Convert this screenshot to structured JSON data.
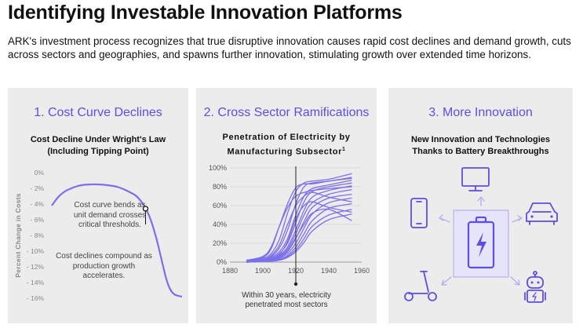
{
  "page": {
    "title": "Identifying Investable Innovation Platforms",
    "intro": "ARK's investment process recognizes that true disruptive innovation causes rapid cost declines and demand growth, cuts across sectors and geographies, and spawns further innovation, stimulating growth over extended time horizons."
  },
  "panels": [
    {
      "title": "1. Cost Curve Declines",
      "subtitle_line1": "Cost Decline Under Wright's Law",
      "subtitle_line2": "(Including Tipping Point)",
      "annotation1_line1": "Cost curve bends as",
      "annotation1_line2": "unit demand crosses",
      "annotation1_line3": "critical thresholds.",
      "annotation2_line1": "Cost declines compound as",
      "annotation2_line2": "production growth",
      "annotation2_line3": "accelerates."
    },
    {
      "title": "2. Cross Sector Ramifications",
      "subtitle_line1": "Penetration of Electricity by",
      "subtitle_line2": "Manufacturing Subsector",
      "subtitle_sup": "1",
      "annotation_line1": "Within 30 years, electricity",
      "annotation_line2": "penetrated most sectors"
    },
    {
      "title": "3. More Innovation",
      "subtitle_line1": "New Innovation and Technologies",
      "subtitle_line2": "Thanks to Battery Breakthroughs",
      "icons": [
        "monitor-icon",
        "smartphone-icon",
        "car-icon",
        "battery-icon",
        "scooter-icon",
        "robot-icon"
      ]
    }
  ],
  "chart_data": [
    {
      "type": "line",
      "title": "Cost Decline Under Wright's Law (Including Tipping Point)",
      "ylabel": "Percent Change in Costs",
      "xlabel": "",
      "ylim": [
        -16,
        0
      ],
      "yticks": [
        "0%",
        "- 2%",
        "- 4%",
        "- 6%",
        "- 8%",
        "- 10%",
        "- 12%",
        "- 14%",
        "- 16%"
      ],
      "grid": false,
      "series": [
        {
          "x": [
            0,
            5,
            10,
            15,
            20,
            25,
            30,
            35,
            40,
            45,
            50,
            55,
            60,
            65,
            70,
            75,
            80,
            85,
            88,
            91,
            94,
            97,
            100
          ],
          "values": [
            -4.2,
            -3.1,
            -2.4,
            -2.0,
            -1.7,
            -1.55,
            -1.5,
            -1.5,
            -1.55,
            -1.65,
            -1.8,
            -2.1,
            -2.5,
            -3.0,
            -4.0,
            -5.6,
            -8.2,
            -11.6,
            -13.6,
            -14.9,
            -15.5,
            -15.7,
            -15.8
          ]
        }
      ],
      "annotations": [
        "Cost curve bends as unit demand crosses critical thresholds.",
        "Cost declines compound as production growth accelerates."
      ]
    },
    {
      "type": "line",
      "title": "Penetration of Electricity by Manufacturing Subsector",
      "xlabel": "",
      "ylabel": "",
      "xlim": [
        1880,
        1960
      ],
      "xticks": [
        "1880",
        "1900",
        "1920",
        "1940",
        "1960"
      ],
      "ylim": [
        0,
        100
      ],
      "yticks": [
        "0%",
        "20%",
        "40%",
        "60%",
        "80%",
        "100%"
      ],
      "grid": true,
      "marker_year": 1920,
      "color": "#7b6fec",
      "series": [
        {
          "x": [
            1890,
            1900,
            1905,
            1910,
            1915,
            1920,
            1925,
            1930,
            1940,
            1954
          ],
          "values": [
            2,
            5,
            14,
            38,
            62,
            79,
            83,
            83,
            86,
            89
          ]
        },
        {
          "x": [
            1890,
            1900,
            1905,
            1910,
            1915,
            1920,
            1925,
            1930,
            1940,
            1954
          ],
          "values": [
            2,
            4,
            9,
            24,
            52,
            75,
            84,
            86,
            88,
            94
          ]
        },
        {
          "x": [
            1890,
            1900,
            1905,
            1910,
            1915,
            1920,
            1925,
            1930,
            1940,
            1954
          ],
          "values": [
            1,
            3,
            6,
            15,
            34,
            62,
            80,
            84,
            86,
            90
          ]
        },
        {
          "x": [
            1890,
            1900,
            1905,
            1910,
            1915,
            1920,
            1925,
            1930,
            1940,
            1954
          ],
          "values": [
            1,
            2,
            5,
            11,
            25,
            50,
            70,
            78,
            82,
            87
          ]
        },
        {
          "x": [
            1890,
            1900,
            1905,
            1910,
            1915,
            1920,
            1925,
            1930,
            1940,
            1954
          ],
          "values": [
            1,
            2,
            4,
            9,
            20,
            42,
            64,
            75,
            80,
            84
          ]
        },
        {
          "x": [
            1890,
            1900,
            1905,
            1910,
            1915,
            1920,
            1925,
            1930,
            1940,
            1954
          ],
          "values": [
            0,
            2,
            3,
            7,
            16,
            34,
            55,
            69,
            76,
            81
          ]
        },
        {
          "x": [
            1890,
            1900,
            1905,
            1910,
            1915,
            1920,
            1925,
            1930,
            1940,
            1954
          ],
          "values": [
            0,
            1,
            3,
            6,
            14,
            30,
            50,
            63,
            72,
            77
          ]
        },
        {
          "x": [
            1890,
            1900,
            1905,
            1910,
            1915,
            1920,
            1925,
            1930,
            1940,
            1954
          ],
          "values": [
            0,
            1,
            2,
            5,
            11,
            25,
            43,
            58,
            68,
            72
          ]
        },
        {
          "x": [
            1890,
            1900,
            1905,
            1910,
            1915,
            1920,
            1925,
            1930,
            1940,
            1954
          ],
          "values": [
            0,
            1,
            2,
            4,
            9,
            20,
            36,
            51,
            63,
            68
          ]
        },
        {
          "x": [
            1890,
            1900,
            1905,
            1910,
            1915,
            1920,
            1925,
            1930,
            1940,
            1954
          ],
          "values": [
            0,
            1,
            2,
            3,
            7,
            16,
            30,
            44,
            57,
            62
          ]
        },
        {
          "x": [
            1890,
            1900,
            1905,
            1910,
            1915,
            1920,
            1925,
            1930,
            1940,
            1954
          ],
          "values": [
            0,
            1,
            1,
            3,
            6,
            13,
            25,
            38,
            50,
            56
          ]
        },
        {
          "x": [
            1890,
            1900,
            1905,
            1910,
            1915,
            1920,
            1925,
            1930,
            1940,
            1954
          ],
          "values": [
            0,
            1,
            1,
            2,
            5,
            11,
            21,
            33,
            45,
            51
          ]
        },
        {
          "x": [
            1890,
            1900,
            1905,
            1910,
            1915,
            1920,
            1925,
            1930,
            1940,
            1954
          ],
          "values": [
            2,
            6,
            16,
            38,
            58,
            70,
            74,
            76,
            78,
            80
          ]
        },
        {
          "x": [
            1890,
            1900,
            1905,
            1910,
            1915,
            1920,
            1925,
            1930,
            1940,
            1954
          ],
          "values": [
            1,
            3,
            7,
            18,
            40,
            60,
            70,
            74,
            69,
            64
          ]
        },
        {
          "x": [
            1890,
            1900,
            1905,
            1910,
            1915,
            1920,
            1925,
            1930,
            1940,
            1954
          ],
          "values": [
            0,
            1,
            3,
            8,
            22,
            46,
            60,
            64,
            58,
            53
          ]
        },
        {
          "x": [
            1890,
            1900,
            1905,
            1910,
            1915,
            1920,
            1925,
            1930,
            1940,
            1954
          ],
          "values": [
            0,
            1,
            2,
            5,
            12,
            26,
            40,
            52,
            56,
            44
          ]
        }
      ]
    }
  ],
  "colors": {
    "accent": "#5b4fe6",
    "line": "#7b6fec",
    "panel_bg": "#ececec",
    "text": "#111111",
    "axis": "#888888"
  }
}
